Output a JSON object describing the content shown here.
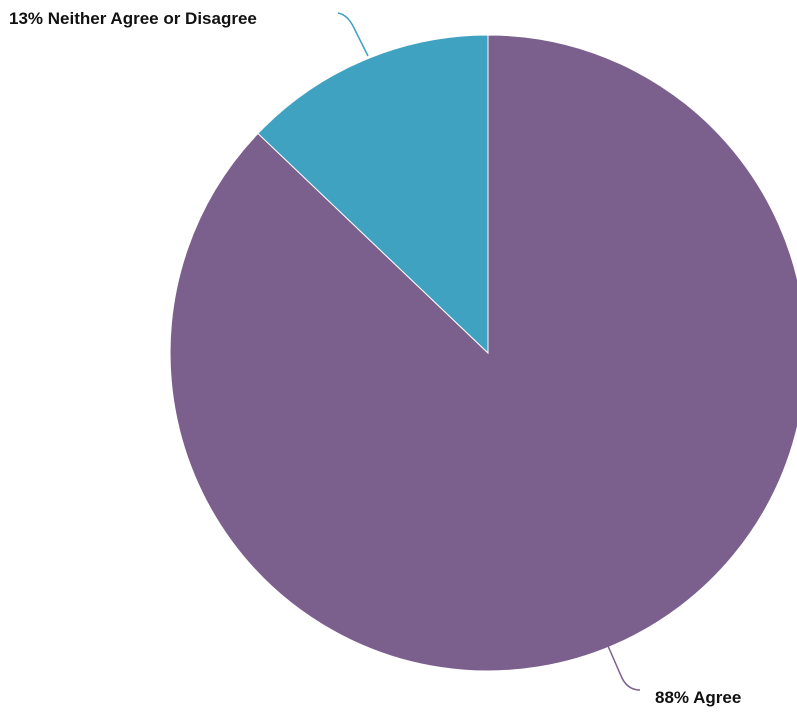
{
  "chart_data": {
    "type": "pie",
    "title": "",
    "start_angle_deg": 0,
    "direction": "clockwise",
    "slices": [
      {
        "name": "Agree",
        "value": 88,
        "label": "88% Agree",
        "color": "#7b608e"
      },
      {
        "name": "Neither Agree or Disagree",
        "value": 13,
        "label": "13% Neither Agree or Disagree",
        "color": "#3fa2c1"
      }
    ],
    "slice_border_color": "#ffffff"
  }
}
